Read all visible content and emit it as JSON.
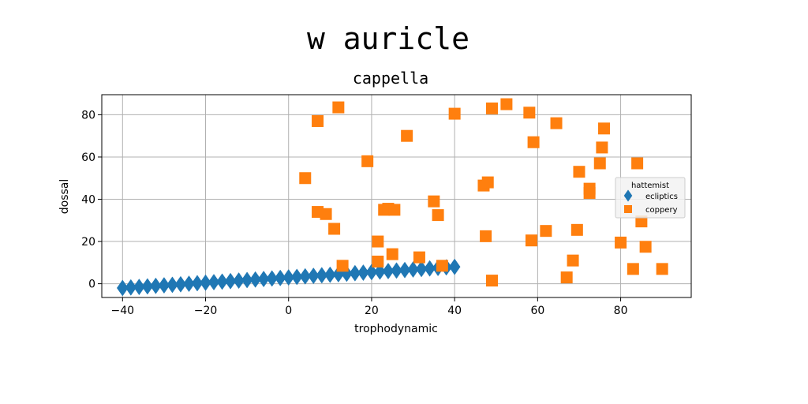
{
  "chart_data": {
    "type": "scatter",
    "title": "w auricle",
    "subtitle": "cappella",
    "xlabel": "trophodynamic",
    "ylabel": "dossal",
    "xlim": [
      -45,
      97
    ],
    "ylim": [
      -6.5,
      89.5
    ],
    "xticks": [
      -40,
      -20,
      0,
      20,
      40,
      60,
      80
    ],
    "yticks": [
      0,
      20,
      40,
      60,
      80
    ],
    "grid": true,
    "legend": {
      "title": "hattemist",
      "placement": "right"
    },
    "series": [
      {
        "name": "ecliptics",
        "marker": "diamond",
        "color": "#1f77b4",
        "x": [
          -40,
          -38,
          -36,
          -34,
          -32,
          -30,
          -28,
          -26,
          -24,
          -22,
          -20,
          -18,
          -16,
          -14,
          -12,
          -10,
          -8,
          -6,
          -4,
          -2,
          0,
          2,
          4,
          6,
          8,
          10,
          12,
          14,
          16,
          18,
          20,
          22,
          24,
          26,
          28,
          30,
          32,
          34,
          36,
          38,
          40
        ],
        "y": [
          -2,
          -1.75,
          -1.5,
          -1.25,
          -1,
          -0.75,
          -0.5,
          -0.25,
          0,
          0.25,
          0.5,
          0.75,
          1,
          1.25,
          1.5,
          1.75,
          2,
          2.25,
          2.5,
          2.75,
          3,
          3.25,
          3.5,
          3.75,
          4,
          4.25,
          4.5,
          4.75,
          5,
          5.25,
          5.5,
          5.75,
          6,
          6.25,
          6.5,
          6.75,
          7,
          7.25,
          7.5,
          7.75,
          8
        ]
      },
      {
        "name": "coppery",
        "marker": "square",
        "color": "#ff7f0e",
        "x": [
          4,
          7,
          7,
          9,
          11,
          12,
          13,
          19,
          21.5,
          21.5,
          23,
          24,
          25,
          25.5,
          28.5,
          31.5,
          35,
          36,
          37,
          40,
          47,
          47.5,
          48,
          49,
          49,
          52.5,
          58,
          58.5,
          59,
          62,
          64.5,
          67,
          68.5,
          69.5,
          70,
          72.5,
          72.5,
          75,
          75.5,
          76,
          80,
          83,
          84,
          85,
          86,
          90
        ],
        "y": [
          50,
          34,
          77,
          33,
          26,
          83.5,
          8.5,
          58,
          20,
          10.5,
          35,
          35.5,
          14,
          35,
          70,
          12.5,
          39,
          32.5,
          8.5,
          80.5,
          46.5,
          22.5,
          48,
          1.5,
          83,
          85,
          81,
          20.5,
          67,
          25,
          76,
          3,
          11,
          25.5,
          53,
          45,
          43,
          57,
          64.5,
          73.5,
          19.5,
          7,
          57,
          29.5,
          17.5,
          7
        ]
      }
    ]
  }
}
